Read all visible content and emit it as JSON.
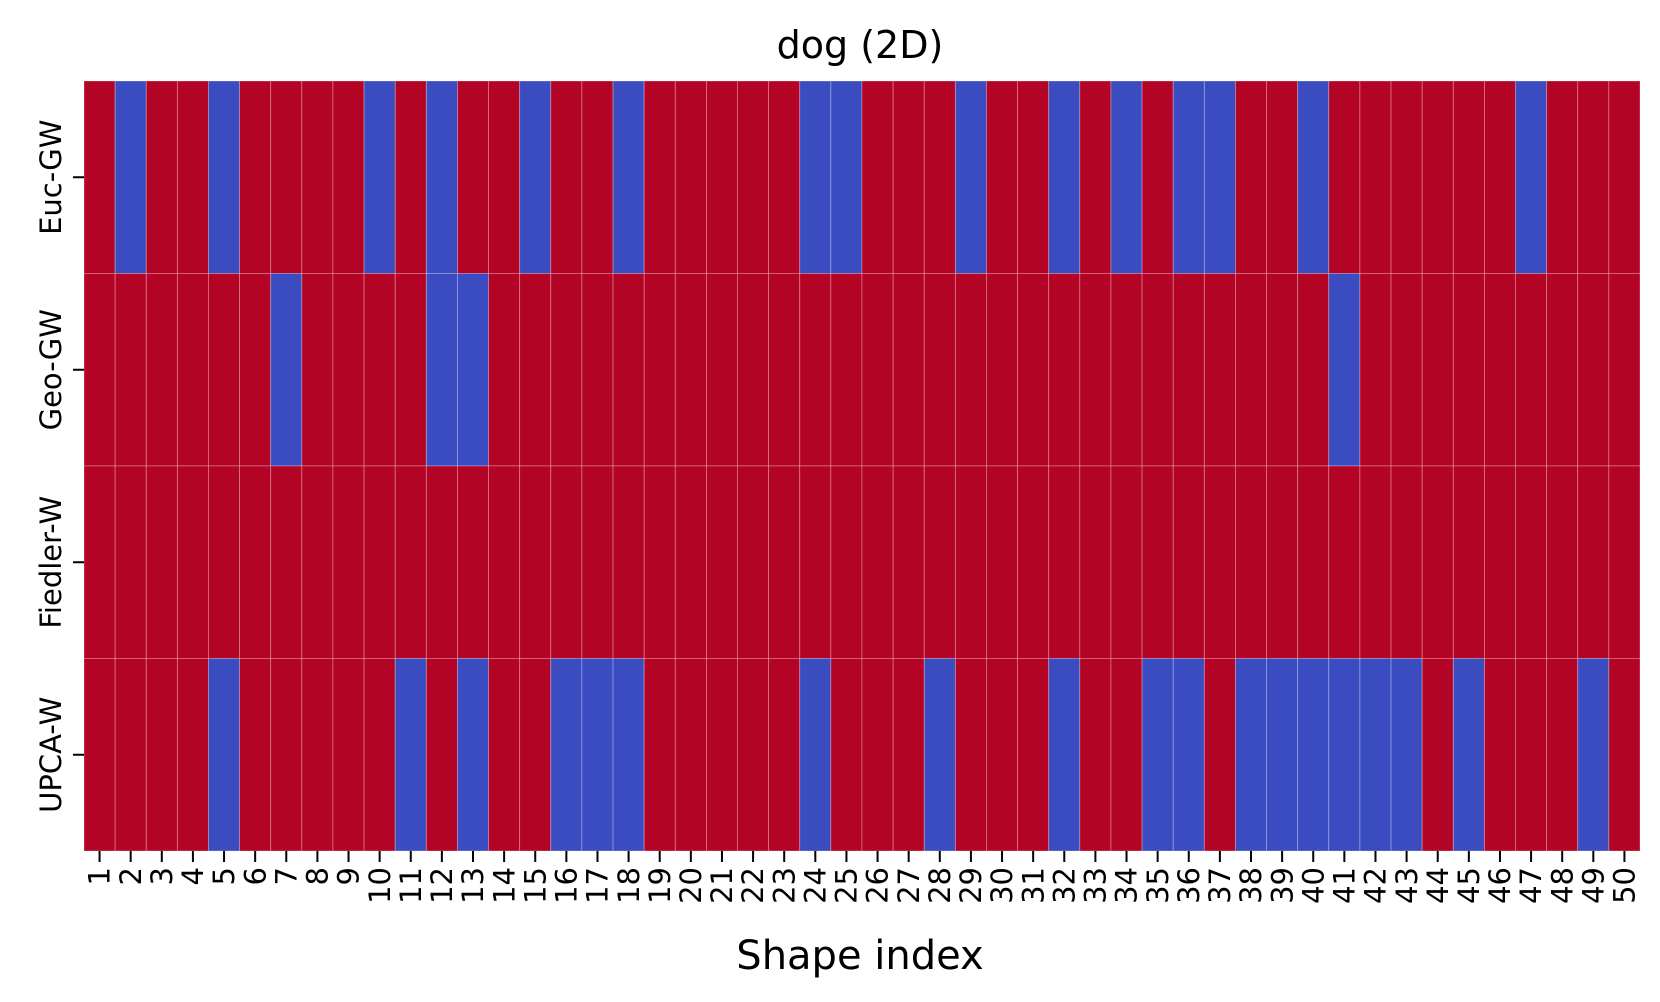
{
  "chart_data": {
    "type": "heatmap",
    "title": "dog (2D)",
    "xlabel": "Shape index",
    "ylabel": "",
    "x_categories": [
      "1",
      "2",
      "3",
      "4",
      "5",
      "6",
      "7",
      "8",
      "9",
      "10",
      "11",
      "12",
      "13",
      "14",
      "15",
      "16",
      "17",
      "18",
      "19",
      "20",
      "21",
      "22",
      "23",
      "24",
      "25",
      "26",
      "27",
      "28",
      "29",
      "30",
      "31",
      "32",
      "33",
      "34",
      "35",
      "36",
      "37",
      "38",
      "39",
      "40",
      "41",
      "42",
      "43",
      "44",
      "45",
      "46",
      "47",
      "48",
      "49",
      "50"
    ],
    "y_categories": [
      "Euc-GW",
      "Geo-GW",
      "Fiedler-W",
      "UPCA-W"
    ],
    "values": [
      [
        1,
        0,
        1,
        1,
        0,
        1,
        1,
        1,
        1,
        0,
        1,
        0,
        1,
        1,
        0,
        1,
        1,
        0,
        1,
        1,
        1,
        1,
        1,
        0,
        0,
        1,
        1,
        1,
        0,
        1,
        1,
        0,
        1,
        0,
        1,
        0,
        0,
        1,
        1,
        0,
        1,
        1,
        1,
        1,
        1,
        1,
        0,
        1,
        1,
        1
      ],
      [
        1,
        1,
        1,
        1,
        1,
        1,
        0,
        1,
        1,
        1,
        1,
        0,
        0,
        1,
        1,
        1,
        1,
        1,
        1,
        1,
        1,
        1,
        1,
        1,
        1,
        1,
        1,
        1,
        1,
        1,
        1,
        1,
        1,
        1,
        1,
        1,
        1,
        1,
        1,
        1,
        0,
        1,
        1,
        1,
        1,
        1,
        1,
        1,
        1,
        1
      ],
      [
        1,
        1,
        1,
        1,
        1,
        1,
        1,
        1,
        1,
        1,
        1,
        1,
        1,
        1,
        1,
        1,
        1,
        1,
        1,
        1,
        1,
        1,
        1,
        1,
        1,
        1,
        1,
        1,
        1,
        1,
        1,
        1,
        1,
        1,
        1,
        1,
        1,
        1,
        1,
        1,
        1,
        1,
        1,
        1,
        1,
        1,
        1,
        1,
        1,
        1
      ],
      [
        1,
        1,
        1,
        1,
        0,
        1,
        1,
        1,
        1,
        1,
        0,
        1,
        0,
        1,
        1,
        0,
        0,
        0,
        1,
        1,
        1,
        1,
        1,
        0,
        1,
        1,
        1,
        0,
        1,
        1,
        1,
        0,
        1,
        1,
        0,
        0,
        1,
        0,
        0,
        0,
        0,
        0,
        0,
        1,
        0,
        1,
        1,
        1,
        0,
        1
      ]
    ],
    "colors": {
      "1": "#b40426",
      "0": "#3b4cc0"
    },
    "grid": false,
    "colorbar": false
  }
}
